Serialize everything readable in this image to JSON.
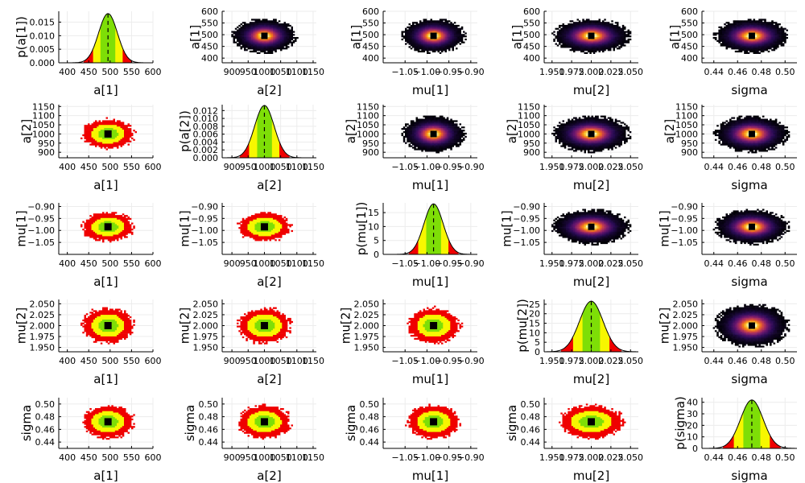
{
  "chart_data": {
    "type": "corner",
    "parameters": [
      "a[1]",
      "a[2]",
      "mu[1]",
      "mu[2]",
      "sigma"
    ],
    "marginal_ylabels": [
      "p(a[1])",
      "p(a[2])",
      "p(mu[1])",
      "p(mu[2])",
      "p(sigma)"
    ],
    "posterior": {
      "mean": [
        495,
        1000,
        -0.985,
        2.0,
        0.472
      ],
      "sd": [
        22,
        30,
        0.022,
        0.015,
        0.0095
      ]
    },
    "axis_ranges": [
      [
        380,
        600
      ],
      [
        870,
        1160
      ],
      [
        -1.1,
        -0.885
      ],
      [
        1.94,
        2.06
      ],
      [
        0.43,
        0.51
      ]
    ],
    "ticks": [
      {
        "values": [
          400,
          450,
          500,
          550,
          600
        ],
        "labels": [
          "400",
          "450",
          "500",
          "550",
          "600"
        ]
      },
      {
        "values": [
          900,
          950,
          1000,
          1050,
          1100,
          1150
        ],
        "labels": [
          "900",
          "950",
          "1000",
          "1050",
          "1100",
          "1150"
        ]
      },
      {
        "values": [
          -1.05,
          -1.0,
          -0.95,
          -0.9
        ],
        "labels": [
          "−1.05",
          "−1.00",
          "−0.95",
          "−0.90"
        ]
      },
      {
        "values": [
          1.95,
          1.975,
          2.0,
          2.025,
          2.05
        ],
        "labels": [
          "1.950",
          "1.975",
          "2.000",
          "2.025",
          "2.050"
        ]
      },
      {
        "values": [
          0.44,
          0.46,
          0.48,
          0.5
        ],
        "labels": [
          "0.44",
          "0.46",
          "0.48",
          "0.50"
        ]
      }
    ],
    "marginal_ylim": [
      [
        0,
        0.019
      ],
      [
        0,
        0.0135
      ],
      [
        0,
        18.5
      ],
      [
        0,
        27.5
      ],
      [
        0,
        44
      ]
    ],
    "marginal_yticks": [
      {
        "values": [
          0,
          0.005,
          0.01,
          0.015
        ],
        "labels": [
          "0.000",
          "0.005",
          "0.010",
          "0.015"
        ]
      },
      {
        "values": [
          0,
          0.002,
          0.004,
          0.006,
          0.008,
          0.01,
          0.012
        ],
        "labels": [
          "0.000",
          "0.002",
          "0.004",
          "0.006",
          "0.008",
          "0.010",
          "0.012"
        ]
      },
      {
        "values": [
          0,
          5,
          10,
          15
        ],
        "labels": [
          "0",
          "5",
          "10",
          "15"
        ]
      },
      {
        "values": [
          0,
          5,
          10,
          15,
          20,
          25
        ],
        "labels": [
          "0",
          "5",
          "10",
          "15",
          "20",
          "25"
        ]
      },
      {
        "values": [
          0,
          10,
          20,
          30,
          40
        ],
        "labels": [
          "0",
          "10",
          "20",
          "30",
          "40"
        ]
      }
    ],
    "lower_panels": "credible region scatter (green inner, yellow middle, red outer, black mean marker)",
    "upper_panels": "2D histogram heatmap",
    "diagonal_panels": "marginal density with shaded credible intervals and dashed median line",
    "colors": {
      "inner_region": "#7ede07",
      "middle_region": "#f7f700",
      "outer_region": "#ef0000",
      "mean_marker": "#000000",
      "density_line": "#000000",
      "heatmap_low": "#000004",
      "heatmap_mid": "#b73779",
      "heatmap_high": "#fcfdbf",
      "grid": "#ececec",
      "axis": "#000000"
    },
    "grid": true,
    "legend": "none"
  }
}
